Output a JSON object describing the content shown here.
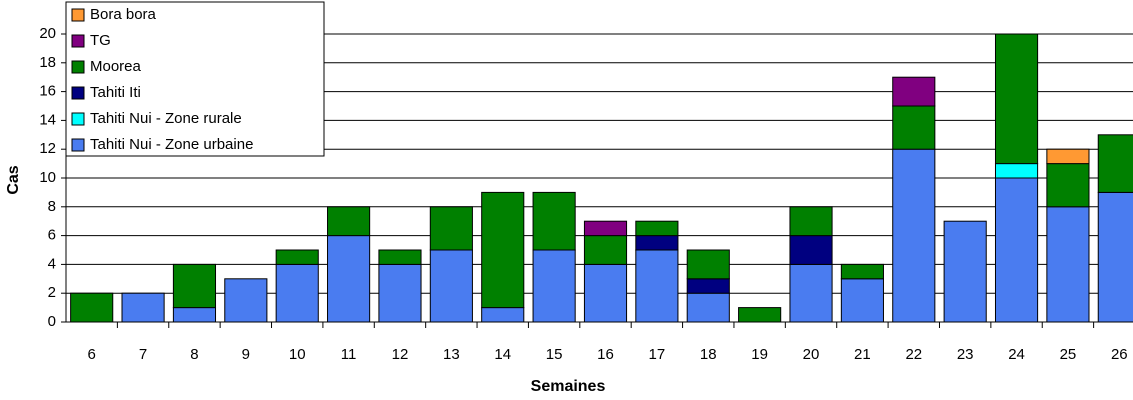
{
  "chart_data": {
    "type": "stacked_bar",
    "x_label": "Semaines",
    "y_label": "Cas",
    "categories": [
      "6",
      "7",
      "8",
      "9",
      "10",
      "11",
      "12",
      "13",
      "14",
      "15",
      "16",
      "17",
      "18",
      "19",
      "20",
      "21",
      "22",
      "23",
      "24",
      "25",
      "26"
    ],
    "series": [
      {
        "name": "Tahiti Nui - Zone urbaine",
        "color": "#4a7cf0",
        "values": [
          0,
          2,
          1,
          3,
          4,
          6,
          4,
          5,
          1,
          5,
          4,
          5,
          2,
          0,
          4,
          3,
          12,
          7,
          10,
          8,
          9
        ]
      },
      {
        "name": "Tahiti Nui - Zone rurale",
        "color": "#00ffff",
        "values": [
          0,
          0,
          0,
          0,
          0,
          0,
          0,
          0,
          0,
          0,
          0,
          0,
          0,
          0,
          0,
          0,
          0,
          0,
          1,
          0,
          0
        ]
      },
      {
        "name": "Tahiti Iti",
        "color": "#000080",
        "values": [
          0,
          0,
          0,
          0,
          0,
          0,
          0,
          0,
          0,
          0,
          0,
          1,
          1,
          0,
          2,
          0,
          0,
          0,
          0,
          0,
          0
        ]
      },
      {
        "name": "Moorea",
        "color": "#008000",
        "values": [
          2,
          0,
          3,
          0,
          1,
          2,
          1,
          3,
          8,
          4,
          2,
          1,
          2,
          1,
          2,
          1,
          3,
          0,
          9,
          3,
          4
        ]
      },
      {
        "name": "TG",
        "color": "#800080",
        "values": [
          0,
          0,
          0,
          0,
          0,
          0,
          0,
          0,
          0,
          0,
          1,
          0,
          0,
          0,
          0,
          0,
          2,
          0,
          0,
          0,
          0
        ]
      },
      {
        "name": "Bora bora",
        "color": "#ff9933",
        "values": [
          0,
          0,
          0,
          0,
          0,
          0,
          0,
          0,
          0,
          0,
          0,
          0,
          0,
          0,
          0,
          0,
          0,
          0,
          0,
          1,
          0
        ]
      }
    ],
    "ylim": [
      0,
      20
    ],
    "yticks": [
      0,
      2,
      4,
      6,
      8,
      10,
      12,
      14,
      16,
      18,
      20
    ],
    "grid": true,
    "legend": "top-left"
  }
}
